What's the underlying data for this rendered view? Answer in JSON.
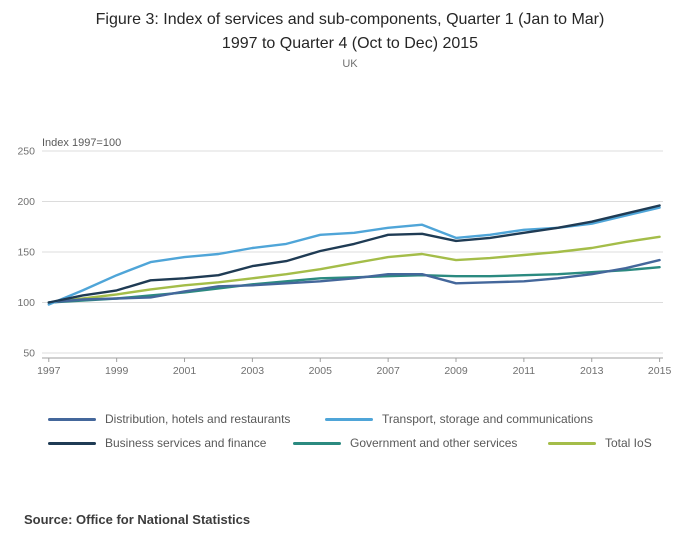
{
  "page": {
    "title_lines": [
      "Figure 3: Index of services and sub-components, Quarter 1 (Jan to Mar)",
      "1997 to Quarter 4 (Oct to Dec) 2015"
    ],
    "subtitle": "UK",
    "source": "Source: Office for National Statistics"
  },
  "chart_data": {
    "type": "line",
    "title": "Figure 3: Index of services and sub-components, Quarter 1 (Jan to Mar) 1997 to Quarter 4 (Oct to Dec) 2015",
    "subtitle": "UK",
    "unit_label": "Index 1997=100",
    "x": [
      1997,
      1998,
      1999,
      2000,
      2001,
      2002,
      2003,
      2004,
      2005,
      2006,
      2007,
      2008,
      2009,
      2010,
      2011,
      2012,
      2013,
      2014,
      2015
    ],
    "x_ticks": [
      1997,
      1999,
      2001,
      2003,
      2005,
      2007,
      2009,
      2011,
      2013,
      2015
    ],
    "y_ticks": [
      50,
      100,
      150,
      200,
      250
    ],
    "ylim": [
      50,
      250
    ],
    "grid": true,
    "legend_position": "bottom",
    "axis_colors": {
      "grid": "#dcdcdc",
      "axis": "#a0a0a0",
      "tick_text": "#707070",
      "unit_text": "#595959"
    },
    "series": [
      {
        "name": "Distribution, hotels and restaurants",
        "color": "#44679b",
        "values": [
          100,
          103,
          104,
          105,
          111,
          116,
          117,
          119,
          121,
          124,
          128,
          128,
          119,
          120,
          121,
          124,
          128,
          134,
          142
        ]
      },
      {
        "name": "Transport, storage and communications",
        "color": "#4fa5d8",
        "values": [
          98,
          112,
          127,
          140,
          145,
          148,
          154,
          158,
          167,
          169,
          174,
          177,
          164,
          167,
          172,
          174,
          178,
          186,
          194
        ]
      },
      {
        "name": "Business services and finance",
        "color": "#1f3b54",
        "values": [
          100,
          107,
          112,
          122,
          124,
          127,
          136,
          141,
          151,
          158,
          167,
          168,
          161,
          164,
          169,
          174,
          180,
          188,
          196
        ]
      },
      {
        "name": "Government and other services",
        "color": "#2b8a80",
        "values": [
          100,
          102,
          104,
          107,
          110,
          114,
          118,
          121,
          124,
          125,
          126,
          127,
          126,
          126,
          127,
          128,
          130,
          132,
          135
        ]
      },
      {
        "name": "Total IoS",
        "color": "#a4bd49",
        "values": [
          100,
          104,
          108,
          113,
          117,
          120,
          124,
          128,
          133,
          139,
          145,
          148,
          142,
          144,
          147,
          150,
          154,
          160,
          165
        ]
      }
    ]
  }
}
